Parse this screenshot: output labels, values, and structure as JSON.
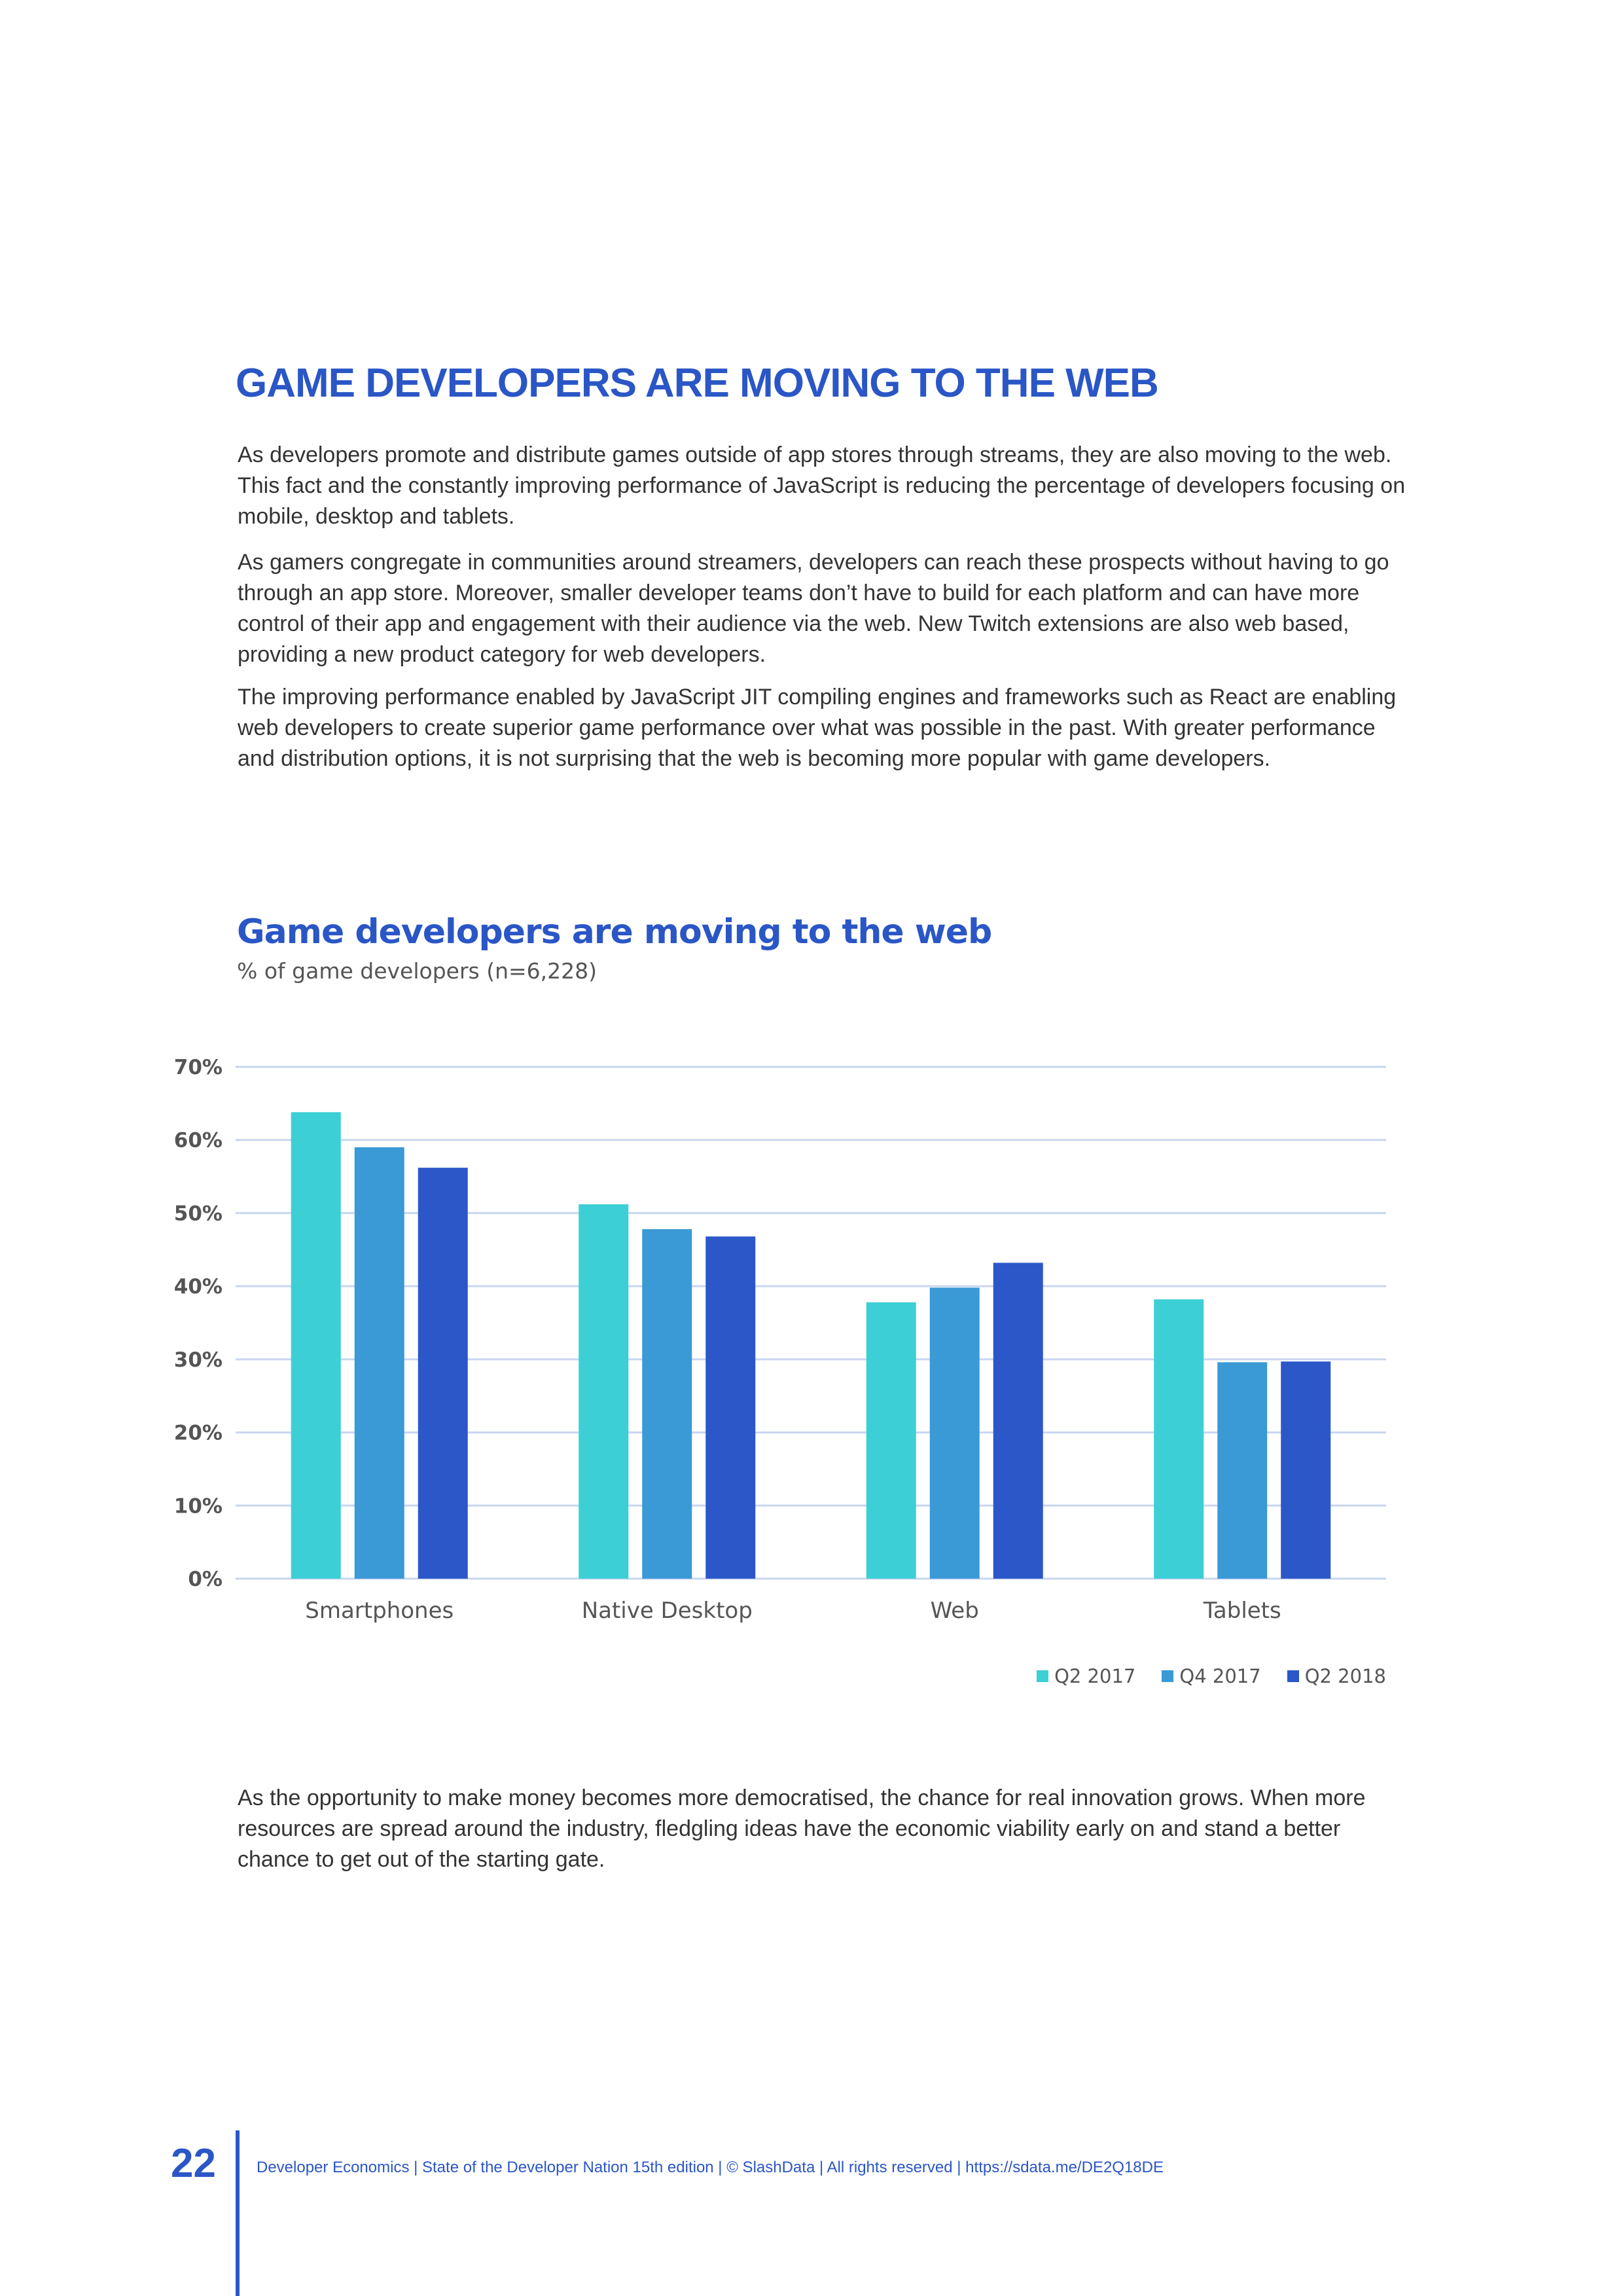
{
  "page": {
    "heading": "GAME DEVELOPERS ARE MOVING TO THE WEB",
    "paragraphs": [
      "As developers  promote and distribute games outside of app stores through streams, they are also moving to the web. This fact and the constantly improving performance of JavaScript is reducing the percentage of developers focusing on mobile, desktop and tablets.",
      "As gamers congregate in communities around streamers, developers can reach these prospects without having to go through an app store. Moreover, smaller developer teams don’t have to build for each platform and can have more control of their app and engagement with their audience via the web. New Twitch extensions are also web based, providing a new product category for web developers.",
      "The improving performance enabled by JavaScript JIT compiling engines and frameworks such as React are enabling web developers to create superior game performance over what was possible in the past. With greater performance and distribution options, it is not surprising that the web is becoming more popular with game developers.",
      "As the opportunity to make money becomes more democratised, the chance for real innovation grows. When more resources are spread around the industry, fledgling ideas have the economic viability early on and stand a better chance to get out of the starting gate."
    ],
    "page_number": "22",
    "footer": "Developer Economics | State of the Developer Nation 15th edition | © SlashData | All rights reserved | https://sdata.me/DE2Q18DE"
  },
  "chart_data": {
    "type": "bar",
    "title": "Game developers are moving to the web",
    "subtitle": "% of game developers (n=6,228)",
    "categories": [
      "Smartphones",
      "Native Desktop",
      "Web",
      "Tablets"
    ],
    "series": [
      {
        "name": "Q2 2017",
        "color": "#3ccfd6",
        "values": [
          63.8,
          51.2,
          37.8,
          38.2
        ]
      },
      {
        "name": "Q4 2017",
        "color": "#3a9ad5",
        "values": [
          59.0,
          47.8,
          39.8,
          29.6
        ]
      },
      {
        "name": "Q2 2018",
        "color": "#2b57c9",
        "values": [
          56.2,
          46.8,
          43.2,
          29.7
        ]
      }
    ],
    "ylim": [
      0,
      70
    ],
    "yticks": [
      0,
      10,
      20,
      30,
      40,
      50,
      60,
      70
    ],
    "ytick_labels": [
      "0%",
      "10%",
      "20%",
      "30%",
      "40%",
      "50%",
      "60%",
      "70%"
    ],
    "grid": true,
    "legend_position": "bottom-right",
    "gridline_color": "#c9d6ef"
  }
}
